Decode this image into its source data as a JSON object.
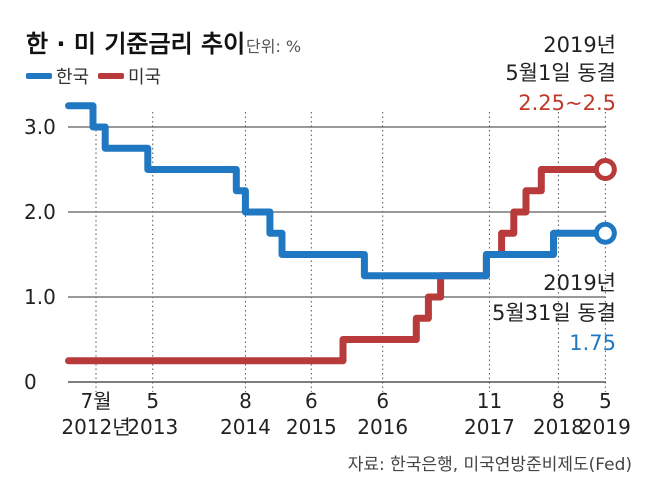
{
  "chart_data": {
    "type": "line",
    "title": "한 · 미 기준금리 추이",
    "unit": "단위: %",
    "ylim": [
      0,
      3.3
    ],
    "yticks": [
      {
        "value": 0,
        "label": "0"
      },
      {
        "value": 1,
        "label": "1.0"
      },
      {
        "value": 2,
        "label": "2.0"
      },
      {
        "value": 3,
        "label": "3.0"
      }
    ],
    "grid": true,
    "legend_position": "top-left",
    "xticks": [
      {
        "t": 0,
        "lines": [
          "7월",
          "2012년"
        ]
      },
      {
        "t": 9.3,
        "lines": [
          "5",
          "2013"
        ]
      },
      {
        "t": 24.5,
        "lines": [
          "8",
          "2014"
        ]
      },
      {
        "t": 35.3,
        "lines": [
          "6",
          "2015"
        ]
      },
      {
        "t": 47,
        "lines": [
          "6",
          "2016"
        ]
      },
      {
        "t": 64.5,
        "lines": [
          "11",
          "2017"
        ]
      },
      {
        "t": 75.8,
        "lines": [
          "8",
          "2018"
        ]
      },
      {
        "t": 83.5,
        "lines": [
          "5",
          "2019"
        ]
      }
    ],
    "series": [
      {
        "name": "한국",
        "color": "#1f78c1",
        "points": [
          [
            -4.5,
            3.25
          ],
          [
            -0.5,
            3.25
          ],
          [
            -0.5,
            3.0
          ],
          [
            1.5,
            3.0
          ],
          [
            1.5,
            2.75
          ],
          [
            8.5,
            2.75
          ],
          [
            8.5,
            2.5
          ],
          [
            23,
            2.5
          ],
          [
            23,
            2.25
          ],
          [
            24.5,
            2.25
          ],
          [
            24.5,
            2.0
          ],
          [
            28.5,
            2.0
          ],
          [
            28.5,
            1.75
          ],
          [
            30.5,
            1.75
          ],
          [
            30.5,
            1.5
          ],
          [
            44,
            1.5
          ],
          [
            44,
            1.25
          ],
          [
            64,
            1.25
          ],
          [
            64,
            1.5
          ],
          [
            75,
            1.5
          ],
          [
            75,
            1.75
          ],
          [
            83.5,
            1.75
          ]
        ],
        "end_marker": true
      },
      {
        "name": "미국",
        "color": "#b93a3a",
        "points": [
          [
            -4.5,
            0.25
          ],
          [
            40.5,
            0.25
          ],
          [
            40.5,
            0.5
          ],
          [
            52.5,
            0.5
          ],
          [
            52.5,
            0.75
          ],
          [
            54.5,
            0.75
          ],
          [
            54.5,
            1.0
          ],
          [
            56.5,
            1.0
          ],
          [
            56.5,
            1.25
          ],
          [
            64,
            1.25
          ],
          [
            64,
            1.5
          ],
          [
            66.5,
            1.5
          ],
          [
            66.5,
            1.75
          ],
          [
            68.5,
            1.75
          ],
          [
            68.5,
            2.0
          ],
          [
            70.5,
            2.0
          ],
          [
            70.5,
            2.25
          ],
          [
            73,
            2.25
          ],
          [
            73,
            2.5
          ],
          [
            83.5,
            2.5
          ]
        ],
        "end_marker": true
      }
    ],
    "annotations": {
      "us": {
        "lines": [
          "2019년",
          "5월1일 동결"
        ],
        "value": "2.25~2.5"
      },
      "kr": {
        "lines": [
          "2019년",
          "5월31일 동결"
        ],
        "value": "1.75"
      }
    },
    "source": "자료: 한국은행, 미국연방준비제도(Fed)"
  }
}
